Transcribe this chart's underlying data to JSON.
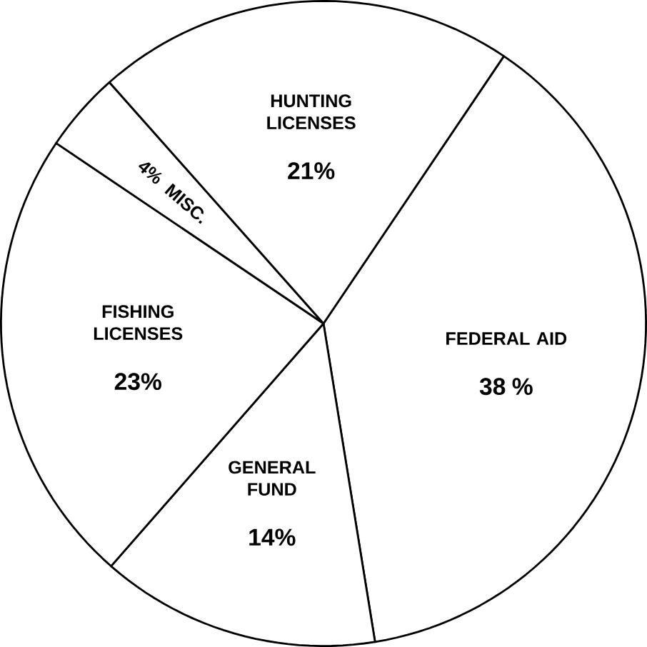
{
  "chart_data": {
    "type": "pie",
    "categories": [
      "FEDERAL AID",
      "GENERAL FUND",
      "FISHING LICENSES",
      "MISC.",
      "HUNTING LICENSES"
    ],
    "values": [
      38,
      14,
      23,
      4,
      21
    ],
    "value_labels": [
      "38 %",
      "14%",
      "23%",
      "4%",
      "21%"
    ],
    "colors": [
      "#ffffff",
      "#ffffff",
      "#ffffff",
      "#ffffff",
      "#ffffff"
    ]
  }
}
